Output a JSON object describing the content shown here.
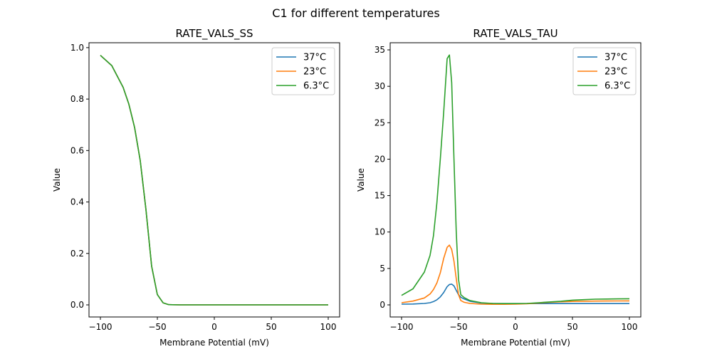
{
  "suptitle": "C1 for different temperatures",
  "chart_data": [
    {
      "type": "line",
      "title": "RATE_VALS_SS",
      "xlabel": "Membrane Potential (mV)",
      "ylabel": "Value",
      "xlim": [
        -110,
        110
      ],
      "ylim": [
        -0.047,
        1.019
      ],
      "xticks": [
        -100,
        -50,
        0,
        50,
        100
      ],
      "xtick_labels": [
        "−100",
        "−50",
        "0",
        "50",
        "100"
      ],
      "yticks": [
        0,
        0.2,
        0.4,
        0.6,
        0.8,
        1.0
      ],
      "ytick_labels": [
        "0.0",
        "0.2",
        "0.4",
        "0.6",
        "0.8",
        "1.0"
      ],
      "legend": "top-right",
      "grid": false,
      "x": [
        -100,
        -90,
        -80,
        -75,
        -70,
        -65,
        -60,
        -55,
        -50,
        -45,
        -40,
        -30,
        -20,
        -10,
        0,
        10,
        20,
        30,
        40,
        50,
        60,
        70,
        80,
        90,
        100
      ],
      "series": [
        {
          "name": "37°C",
          "color": "#1f77b4",
          "values": [
            0.97,
            0.93,
            0.845,
            0.78,
            0.69,
            0.56,
            0.37,
            0.15,
            0.04,
            0.008,
            0.001,
            0,
            0,
            0,
            0,
            0,
            0,
            0,
            0,
            0,
            0,
            0,
            0,
            0,
            0
          ]
        },
        {
          "name": "23°C",
          "color": "#ff7f0e",
          "values": [
            0.97,
            0.93,
            0.845,
            0.78,
            0.69,
            0.56,
            0.37,
            0.15,
            0.04,
            0.008,
            0.001,
            0,
            0,
            0,
            0,
            0,
            0,
            0,
            0,
            0,
            0,
            0,
            0,
            0,
            0
          ]
        },
        {
          "name": "6.3°C",
          "color": "#2ca02c",
          "values": [
            0.97,
            0.93,
            0.845,
            0.78,
            0.69,
            0.56,
            0.37,
            0.15,
            0.04,
            0.008,
            0.001,
            0,
            0,
            0,
            0,
            0,
            0,
            0,
            0,
            0,
            0,
            0,
            0,
            0,
            0
          ]
        }
      ]
    },
    {
      "type": "line",
      "title": "RATE_VALS_TAU",
      "xlabel": "Membrane Potential (mV)",
      "ylabel": "Value",
      "xlim": [
        -110,
        110
      ],
      "ylim": [
        -1.66,
        35.98
      ],
      "xticks": [
        -100,
        -50,
        0,
        50,
        100
      ],
      "xtick_labels": [
        "−100",
        "−50",
        "0",
        "50",
        "100"
      ],
      "yticks": [
        0,
        5,
        10,
        15,
        20,
        25,
        30,
        35
      ],
      "ytick_labels": [
        "0",
        "5",
        "10",
        "15",
        "20",
        "25",
        "30",
        "35"
      ],
      "legend": "top-right",
      "grid": false,
      "x": [
        -100,
        -90,
        -80,
        -75,
        -72,
        -69,
        -66,
        -63,
        -60,
        -58,
        -56,
        -54,
        -52,
        -50,
        -48,
        -45,
        -40,
        -30,
        -20,
        -10,
        0,
        10,
        20,
        30,
        40,
        50,
        60,
        70,
        80,
        90,
        100
      ],
      "series": [
        {
          "name": "37°C",
          "color": "#1f77b4",
          "values": [
            0.1,
            0.12,
            0.2,
            0.3,
            0.45,
            0.7,
            1.1,
            1.7,
            2.5,
            2.8,
            2.85,
            2.6,
            2.0,
            1.4,
            1.05,
            0.8,
            0.5,
            0.25,
            0.2,
            0.18,
            0.18,
            0.18,
            0.18,
            0.18,
            0.18,
            0.18,
            0.18,
            0.18,
            0.18,
            0.18,
            0.18
          ]
        },
        {
          "name": "23°C",
          "color": "#ff7f0e",
          "values": [
            0.3,
            0.52,
            0.95,
            1.5,
            2.1,
            3.0,
            4.4,
            6.4,
            7.9,
            8.2,
            7.6,
            6.0,
            3.6,
            1.4,
            0.6,
            0.35,
            0.2,
            0.1,
            0.08,
            0.08,
            0.1,
            0.15,
            0.25,
            0.35,
            0.42,
            0.47,
            0.5,
            0.52,
            0.53,
            0.54,
            0.55
          ]
        },
        {
          "name": "6.3°C",
          "color": "#2ca02c",
          "values": [
            1.3,
            2.2,
            4.5,
            6.8,
            9.5,
            14.0,
            20.0,
            26.5,
            33.8,
            34.3,
            30.5,
            20.0,
            10.0,
            3.5,
            1.4,
            1.0,
            0.6,
            0.3,
            0.2,
            0.18,
            0.18,
            0.2,
            0.3,
            0.4,
            0.5,
            0.65,
            0.72,
            0.78,
            0.8,
            0.82,
            0.84
          ]
        }
      ]
    }
  ]
}
